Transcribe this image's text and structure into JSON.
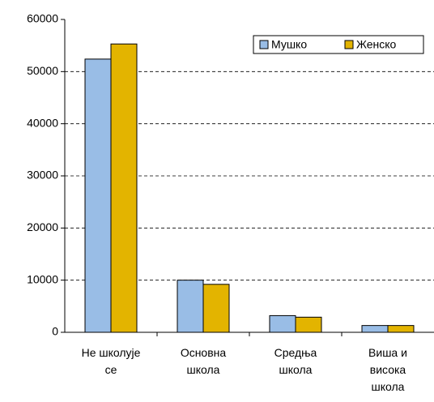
{
  "chart_data": {
    "type": "bar",
    "categories": [
      "Не школује се",
      "Основна школа",
      "Средња школа",
      "Виша и висока школа"
    ],
    "series": [
      {
        "name": "Мушко",
        "color": "#99bde6",
        "values": [
          52400,
          10000,
          3200,
          1300
        ]
      },
      {
        "name": "Женско",
        "color": "#e3b400",
        "values": [
          55300,
          9200,
          2900,
          1300
        ]
      }
    ],
    "ylim": [
      0,
      60000
    ],
    "yticks": [
      0,
      10000,
      20000,
      30000,
      40000,
      50000,
      60000
    ],
    "grid": true,
    "legend": "top-right"
  }
}
